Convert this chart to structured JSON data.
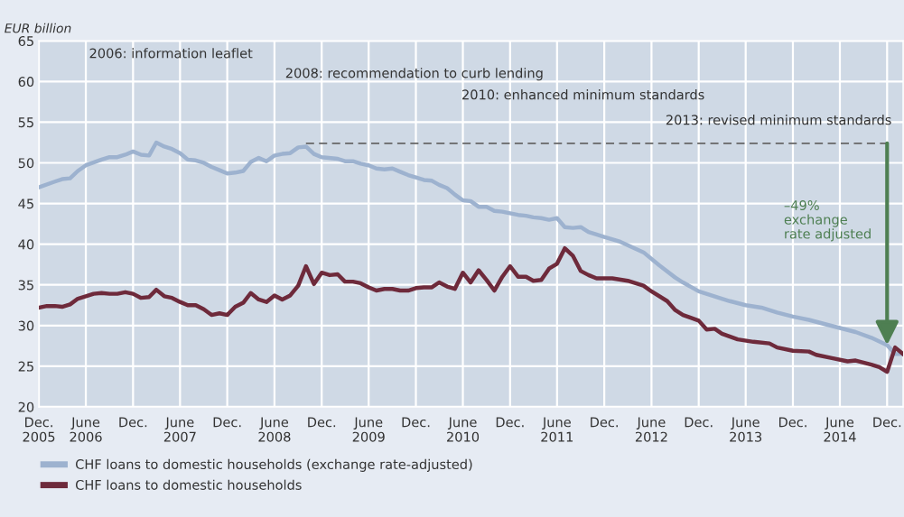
{
  "chart_data": {
    "type": "line",
    "ylabel": "EUR billion",
    "xlim": [
      "2005-12",
      "2015-02"
    ],
    "xticks": [
      {
        "value": "2005-12",
        "label": "Dec.\n2005"
      },
      {
        "value": "2006-06",
        "label": "June\n2006"
      },
      {
        "value": "2006-12",
        "label": "Dec."
      },
      {
        "value": "2007-06",
        "label": "June\n2007"
      },
      {
        "value": "2007-12",
        "label": "Dec."
      },
      {
        "value": "2008-06",
        "label": "June\n2008"
      },
      {
        "value": "2008-12",
        "label": "Dec."
      },
      {
        "value": "2009-06",
        "label": "June\n2009"
      },
      {
        "value": "2009-12",
        "label": "Dec."
      },
      {
        "value": "2010-06",
        "label": "June\n2010"
      },
      {
        "value": "2010-12",
        "label": "Dec."
      },
      {
        "value": "2011-06",
        "label": "June\n2011"
      },
      {
        "value": "2011-12",
        "label": "Dec."
      },
      {
        "value": "2012-06",
        "label": "June\n2012"
      },
      {
        "value": "2012-12",
        "label": "Dec."
      },
      {
        "value": "2013-06",
        "label": "June\n2013"
      },
      {
        "value": "2013-12",
        "label": "Dec."
      },
      {
        "value": "2014-06",
        "label": "June\n2014"
      },
      {
        "value": "2014-12",
        "label": "Dec."
      }
    ],
    "ylim": [
      20,
      65
    ],
    "yticks": [
      20,
      25,
      30,
      35,
      40,
      45,
      50,
      55,
      60,
      65
    ],
    "grid": true,
    "legend": "bottom",
    "marker": "none",
    "line_style": "solid",
    "series": [
      {
        "name": "CHF loans to domestic households (exchange rate-adjusted)",
        "color": "#9db2cf",
        "x": [
          "2005-12",
          "2006-02",
          "2006-03",
          "2006-04",
          "2006-05",
          "2006-06",
          "2006-08",
          "2006-09",
          "2006-10",
          "2006-11",
          "2006-12",
          "2007-01",
          "2007-02",
          "2007-03",
          "2007-04",
          "2007-05",
          "2007-06",
          "2007-07",
          "2007-08",
          "2007-09",
          "2007-10",
          "2007-11",
          "2007-12",
          "2008-01",
          "2008-02",
          "2008-03",
          "2008-04",
          "2008-05",
          "2008-06",
          "2008-07",
          "2008-08",
          "2008-09",
          "2008-10",
          "2008-11",
          "2008-12",
          "2009-02",
          "2009-03",
          "2009-04",
          "2009-05",
          "2009-06",
          "2009-07",
          "2009-08",
          "2009-09",
          "2009-10",
          "2009-11",
          "2009-12",
          "2010-01",
          "2010-02",
          "2010-03",
          "2010-04",
          "2010-05",
          "2010-06",
          "2010-07",
          "2010-08",
          "2010-09",
          "2010-10",
          "2010-11",
          "2010-12",
          "2011-01",
          "2011-02",
          "2011-03",
          "2011-04",
          "2011-05",
          "2011-06",
          "2011-07",
          "2011-08",
          "2011-09",
          "2011-10",
          "2011-11",
          "2011-12",
          "2012-02",
          "2012-05",
          "2012-07",
          "2012-09",
          "2012-10",
          "2012-12",
          "2013-03",
          "2013-04",
          "2013-06",
          "2013-08",
          "2013-10",
          "2013-12",
          "2014-02",
          "2014-04",
          "2014-06",
          "2014-08",
          "2014-10",
          "2014-12",
          "2015-01",
          "2015-02"
        ],
        "values": [
          47.0,
          47.7,
          48.0,
          48.1,
          49.0,
          49.7,
          50.4,
          50.7,
          50.7,
          51.0,
          51.4,
          51.0,
          50.9,
          52.5,
          52.0,
          51.7,
          51.2,
          50.4,
          50.3,
          50.0,
          49.5,
          49.1,
          48.7,
          48.8,
          49.0,
          50.1,
          50.6,
          50.2,
          50.9,
          51.1,
          51.2,
          51.9,
          52.0,
          51.1,
          50.7,
          50.5,
          50.2,
          50.2,
          49.9,
          49.7,
          49.3,
          49.2,
          49.3,
          48.9,
          48.5,
          48.2,
          47.9,
          47.8,
          47.3,
          46.9,
          46.1,
          45.4,
          45.3,
          44.6,
          44.6,
          44.1,
          44.0,
          43.8,
          43.6,
          43.5,
          43.3,
          43.2,
          43.0,
          43.2,
          42.1,
          42.0,
          42.1,
          41.5,
          41.2,
          40.9,
          40.3,
          39.0,
          37.4,
          35.9,
          35.3,
          34.2,
          33.3,
          33.0,
          32.5,
          32.2,
          31.6,
          31.1,
          30.7,
          30.2,
          29.7,
          29.2,
          28.5,
          27.6,
          26.5,
          26.5
        ]
      },
      {
        "name": "CHF loans to domestic households",
        "color": "#6e2a3b",
        "x": [
          "2005-12",
          "2006-01",
          "2006-02",
          "2006-03",
          "2006-04",
          "2006-05",
          "2006-06",
          "2006-07",
          "2006-08",
          "2006-09",
          "2006-10",
          "2006-11",
          "2006-12",
          "2007-01",
          "2007-02",
          "2007-03",
          "2007-04",
          "2007-05",
          "2007-06",
          "2007-07",
          "2007-08",
          "2007-09",
          "2007-10",
          "2007-11",
          "2007-12",
          "2008-01",
          "2008-02",
          "2008-03",
          "2008-04",
          "2008-05",
          "2008-06",
          "2008-07",
          "2008-08",
          "2008-09",
          "2008-10",
          "2008-11",
          "2008-12",
          "2009-01",
          "2009-02",
          "2009-03",
          "2009-04",
          "2009-05",
          "2009-06",
          "2009-07",
          "2009-08",
          "2009-09",
          "2009-10",
          "2009-11",
          "2009-12",
          "2010-01",
          "2010-02",
          "2010-03",
          "2010-04",
          "2010-05",
          "2010-06",
          "2010-07",
          "2010-08",
          "2010-09",
          "2010-10",
          "2010-11",
          "2010-12",
          "2011-01",
          "2011-02",
          "2011-03",
          "2011-04",
          "2011-05",
          "2011-06",
          "2011-07",
          "2011-08",
          "2011-09",
          "2011-10",
          "2011-11",
          "2012-01",
          "2012-03",
          "2012-05",
          "2012-06",
          "2012-08",
          "2012-09",
          "2012-10",
          "2012-12",
          "2013-01",
          "2013-02",
          "2013-03",
          "2013-05",
          "2013-07",
          "2013-09",
          "2013-10",
          "2013-12",
          "2014-02",
          "2014-03",
          "2014-05",
          "2014-07",
          "2014-08",
          "2014-10",
          "2014-11",
          "2014-12",
          "2015-01",
          "2015-02"
        ],
        "values": [
          32.2,
          32.4,
          32.4,
          32.3,
          32.6,
          33.3,
          33.6,
          33.9,
          34.0,
          33.9,
          33.9,
          34.1,
          33.9,
          33.4,
          33.5,
          34.4,
          33.6,
          33.4,
          32.9,
          32.5,
          32.5,
          32.0,
          31.3,
          31.5,
          31.3,
          32.3,
          32.8,
          34.0,
          33.2,
          32.9,
          33.7,
          33.2,
          33.7,
          34.9,
          37.3,
          35.1,
          36.5,
          36.2,
          36.3,
          35.4,
          35.4,
          35.2,
          34.7,
          34.3,
          34.5,
          34.5,
          34.3,
          34.3,
          34.6,
          34.7,
          34.7,
          35.3,
          34.8,
          34.5,
          36.5,
          35.3,
          36.8,
          35.6,
          34.3,
          36.0,
          37.3,
          36.0,
          36.0,
          35.5,
          35.6,
          37.0,
          37.6,
          39.5,
          38.6,
          36.7,
          36.2,
          35.8,
          35.8,
          35.5,
          34.9,
          34.2,
          33.0,
          31.9,
          31.3,
          30.6,
          29.5,
          29.6,
          29.0,
          28.3,
          28.0,
          27.8,
          27.3,
          26.9,
          26.8,
          26.4,
          26.0,
          25.6,
          25.7,
          25.2,
          24.9,
          24.3,
          27.3,
          26.5
        ]
      },
      {
        "color": "#666666",
        "line_style": "dashed",
        "x": [
          "2008-10",
          "2014-12"
        ],
        "values": [
          52.4,
          52.4
        ]
      }
    ],
    "annotations": [
      "2006: information leaflet",
      "2008: recommendation to curb lending",
      "2010: enhanced minimum standards",
      "2013: revised minimum standards",
      "–49%\nexchange\nrate adjusted"
    ]
  }
}
